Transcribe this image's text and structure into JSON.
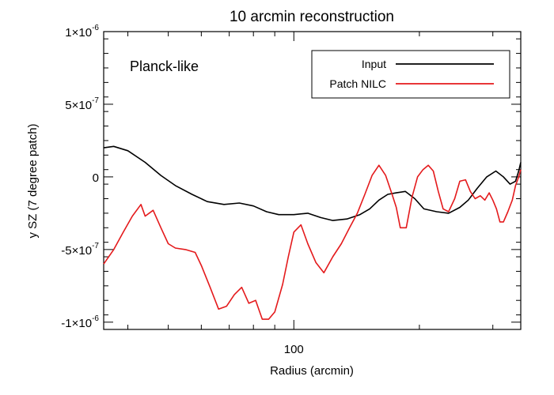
{
  "chart_data": {
    "type": "line",
    "title": "10 arcmin reconstruction",
    "xlabel": "Radius (arcmin)",
    "ylabel": "y SZ (7 degree patch)",
    "annotation": "Planck-like",
    "x_scale": "log",
    "xlim": [
      35,
      350
    ],
    "ylim": [
      -1.05e-06,
      1e-06
    ],
    "x_major_ticks": [
      {
        "value": 100,
        "label": "100"
      }
    ],
    "x_minor_ticks": [
      40,
      50,
      60,
      70,
      80,
      90,
      200,
      300
    ],
    "y_major_ticks": [
      {
        "value": 1e-06,
        "base": "1×10",
        "exp": "-6"
      },
      {
        "value": 5e-07,
        "base": "5×10",
        "exp": "-7"
      },
      {
        "value": 0,
        "base": "0",
        "exp": ""
      },
      {
        "value": -5e-07,
        "base": "-5×10",
        "exp": "-7"
      },
      {
        "value": -1e-06,
        "base": "-1×10",
        "exp": "-6"
      }
    ],
    "y_minor_step": 1e-07,
    "legend_position": "top-right",
    "series": [
      {
        "name": "Input",
        "color": "#000000",
        "points": [
          [
            35,
            2e-07
          ],
          [
            37,
            2.1e-07
          ],
          [
            40,
            1.8e-07
          ],
          [
            44,
            1e-07
          ],
          [
            48,
            1e-08
          ],
          [
            52,
            -6e-08
          ],
          [
            57,
            -1.2e-07
          ],
          [
            62,
            -1.7e-07
          ],
          [
            68,
            -1.9e-07
          ],
          [
            74,
            -1.8e-07
          ],
          [
            80,
            -2e-07
          ],
          [
            86,
            -2.4e-07
          ],
          [
            92,
            -2.6e-07
          ],
          [
            100,
            -2.6e-07
          ],
          [
            108,
            -2.5e-07
          ],
          [
            116,
            -2.8e-07
          ],
          [
            124,
            -3e-07
          ],
          [
            134,
            -2.9e-07
          ],
          [
            144,
            -2.6e-07
          ],
          [
            152,
            -2.2e-07
          ],
          [
            160,
            -1.6e-07
          ],
          [
            168,
            -1.2e-07
          ],
          [
            176,
            -1.1e-07
          ],
          [
            185,
            -1e-07
          ],
          [
            195,
            -1.5e-07
          ],
          [
            205,
            -2.2e-07
          ],
          [
            220,
            -2.4e-07
          ],
          [
            235,
            -2.5e-07
          ],
          [
            250,
            -2.1e-07
          ],
          [
            262,
            -1.6e-07
          ],
          [
            275,
            -8e-08
          ],
          [
            290,
            0
          ],
          [
            305,
            4e-08
          ],
          [
            318,
            0
          ],
          [
            330,
            -5e-08
          ],
          [
            340,
            -3e-08
          ],
          [
            346,
            4e-08
          ],
          [
            350,
            1e-07
          ]
        ]
      },
      {
        "name": "Patch NILC",
        "color": "#e41a1c",
        "points": [
          [
            35,
            -6e-07
          ],
          [
            37,
            -5e-07
          ],
          [
            39,
            -3.8e-07
          ],
          [
            41,
            -2.7e-07
          ],
          [
            43,
            -1.9e-07
          ],
          [
            44,
            -2.7e-07
          ],
          [
            46,
            -2.3e-07
          ],
          [
            48,
            -3.5e-07
          ],
          [
            50,
            -4.6e-07
          ],
          [
            52,
            -4.9e-07
          ],
          [
            55,
            -5e-07
          ],
          [
            58,
            -5.2e-07
          ],
          [
            60,
            -6.1e-07
          ],
          [
            63,
            -7.6e-07
          ],
          [
            66,
            -9.1e-07
          ],
          [
            69,
            -8.9e-07
          ],
          [
            72,
            -8.1e-07
          ],
          [
            75,
            -7.6e-07
          ],
          [
            78,
            -8.7e-07
          ],
          [
            81,
            -8.5e-07
          ],
          [
            84,
            -9.8e-07
          ],
          [
            87,
            -9.8e-07
          ],
          [
            90,
            -9.3e-07
          ],
          [
            94,
            -7.4e-07
          ],
          [
            97,
            -5.5e-07
          ],
          [
            100,
            -3.8e-07
          ],
          [
            104,
            -3.3e-07
          ],
          [
            108,
            -4.6e-07
          ],
          [
            113,
            -5.9e-07
          ],
          [
            118,
            -6.6e-07
          ],
          [
            124,
            -5.5e-07
          ],
          [
            130,
            -4.6e-07
          ],
          [
            136,
            -3.5e-07
          ],
          [
            142,
            -2.5e-07
          ],
          [
            148,
            -1.2e-07
          ],
          [
            154,
            1e-08
          ],
          [
            160,
            8e-08
          ],
          [
            166,
            1e-08
          ],
          [
            172,
            -1.2e-07
          ],
          [
            176,
            -2.1e-07
          ],
          [
            180,
            -3.5e-07
          ],
          [
            186,
            -3.5e-07
          ],
          [
            192,
            -1.4e-07
          ],
          [
            198,
            0
          ],
          [
            204,
            5e-08
          ],
          [
            210,
            8e-08
          ],
          [
            216,
            4e-08
          ],
          [
            222,
            -1e-07
          ],
          [
            228,
            -2.2e-07
          ],
          [
            235,
            -2.4e-07
          ],
          [
            243,
            -1.5e-07
          ],
          [
            250,
            -3e-08
          ],
          [
            258,
            -2e-08
          ],
          [
            265,
            -1e-07
          ],
          [
            272,
            -1.5e-07
          ],
          [
            280,
            -1.3e-07
          ],
          [
            287,
            -1.6e-07
          ],
          [
            294,
            -1.1e-07
          ],
          [
            300,
            -1.6e-07
          ],
          [
            306,
            -2.2e-07
          ],
          [
            312,
            -3.1e-07
          ],
          [
            318,
            -3.1e-07
          ],
          [
            326,
            -2.4e-07
          ],
          [
            334,
            -1.6e-07
          ],
          [
            340,
            -6e-08
          ],
          [
            346,
            0
          ],
          [
            350,
            5e-08
          ]
        ]
      }
    ]
  }
}
